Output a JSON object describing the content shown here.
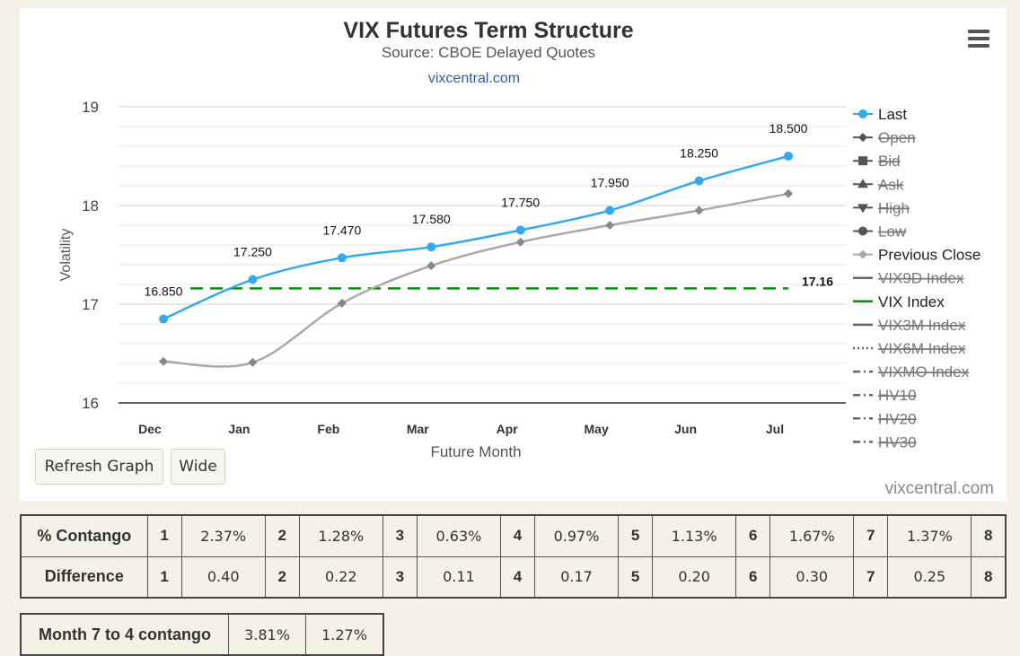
{
  "chart_data": {
    "type": "line",
    "title": "VIX Futures Term Structure",
    "subtitle": "Source: CBOE Delayed Quotes",
    "source_link": "vixcentral.com",
    "xlabel": "Future Month",
    "ylabel": "Volatility",
    "categories": [
      "Dec",
      "Jan",
      "Feb",
      "Mar",
      "Apr",
      "May",
      "Jun",
      "Jul"
    ],
    "ylim": [
      16,
      19
    ],
    "yticks": [
      16,
      17,
      18,
      19
    ],
    "grid": true,
    "legend_position": "right",
    "series": [
      {
        "name": "Last",
        "values": [
          16.85,
          17.25,
          17.47,
          17.58,
          17.75,
          17.95,
          18.25,
          18.5
        ],
        "labels": [
          "16.850",
          "17.250",
          "17.470",
          "17.580",
          "17.750",
          "17.950",
          "18.250",
          "18.500"
        ],
        "color": "#33aaee",
        "marker": "circle"
      },
      {
        "name": "Previous Close",
        "values": [
          16.42,
          16.41,
          17.01,
          17.39,
          17.63,
          17.8,
          17.95,
          18.12
        ],
        "color": "#a9a9a9",
        "marker": "diamond"
      },
      {
        "name": "VIX Index",
        "value": 17.16,
        "label": "17.16",
        "color": "#118811",
        "dash": "dashed"
      }
    ],
    "legend": [
      {
        "name": "Last",
        "symbol": "circle",
        "color": "#33aaee",
        "hidden": false
      },
      {
        "name": "Open",
        "symbol": "diamond",
        "color": "#555555",
        "hidden": true
      },
      {
        "name": "Bid",
        "symbol": "square",
        "color": "#555555",
        "hidden": true
      },
      {
        "name": "Ask",
        "symbol": "triangle",
        "color": "#555555",
        "hidden": true
      },
      {
        "name": "High",
        "symbol": "triangle-down",
        "color": "#555555",
        "hidden": true
      },
      {
        "name": "Low",
        "symbol": "circle",
        "color": "#555555",
        "hidden": true
      },
      {
        "name": "Previous Close",
        "symbol": "diamond",
        "color": "#a9a9a9",
        "hidden": false
      },
      {
        "name": "VIX9D Index",
        "symbol": "line",
        "color": "#666666",
        "hidden": true
      },
      {
        "name": "VIX Index",
        "symbol": "line",
        "color": "#118811",
        "hidden": false
      },
      {
        "name": "VIX3M Index",
        "symbol": "line",
        "color": "#666666",
        "hidden": true
      },
      {
        "name": "VIX6M Index",
        "symbol": "dotted",
        "color": "#666666",
        "hidden": true
      },
      {
        "name": "VIXMO Index",
        "symbol": "dashdot",
        "color": "#666666",
        "hidden": true
      },
      {
        "name": "HV10",
        "symbol": "dashdot",
        "color": "#666666",
        "hidden": true
      },
      {
        "name": "HV20",
        "symbol": "dashdot",
        "color": "#666666",
        "hidden": true
      },
      {
        "name": "HV30",
        "symbol": "dashdot",
        "color": "#666666",
        "hidden": true
      }
    ]
  },
  "controls": {
    "refresh_label": "Refresh Graph",
    "wide_label": "Wide"
  },
  "credit": "vixcentral.com",
  "contango_table": {
    "rows": [
      {
        "label": "% Contango",
        "cells": [
          [
            "1",
            "2.37%"
          ],
          [
            "2",
            "1.28%"
          ],
          [
            "3",
            "0.63%"
          ],
          [
            "4",
            "0.97%"
          ],
          [
            "5",
            "1.13%"
          ],
          [
            "6",
            "1.67%"
          ],
          [
            "7",
            "1.37%"
          ],
          [
            "8",
            ""
          ]
        ]
      },
      {
        "label": "Difference",
        "cells": [
          [
            "1",
            "0.40"
          ],
          [
            "2",
            "0.22"
          ],
          [
            "3",
            "0.11"
          ],
          [
            "4",
            "0.17"
          ],
          [
            "5",
            "0.20"
          ],
          [
            "6",
            "0.30"
          ],
          [
            "7",
            "0.25"
          ],
          [
            "8",
            ""
          ]
        ]
      }
    ]
  },
  "month_table": {
    "label": "Month 7 to 4 contango",
    "values": [
      "3.81%",
      "1.27%"
    ]
  }
}
